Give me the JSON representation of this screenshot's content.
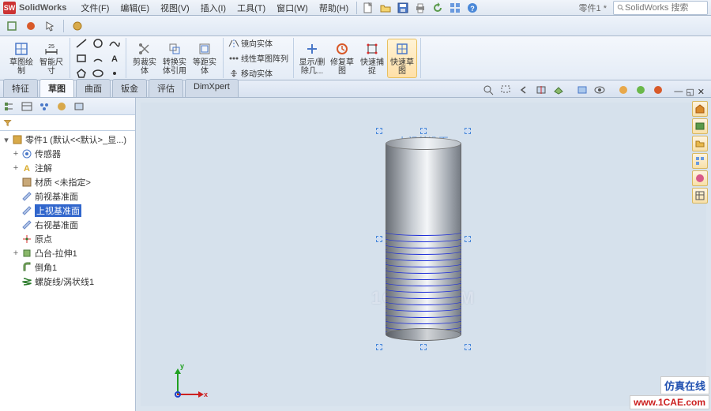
{
  "app": {
    "name": "SolidWorks",
    "doc_title": "零件1 *",
    "search_placeholder": "SolidWorks 搜索"
  },
  "menu": [
    "文件(F)",
    "编辑(E)",
    "视图(V)",
    "插入(I)",
    "工具(T)",
    "窗口(W)",
    "帮助(H)"
  ],
  "tabs": {
    "items": [
      "特征",
      "草图",
      "曲面",
      "钣金",
      "评估",
      "DimXpert"
    ],
    "active": 1
  },
  "ribbon": {
    "big": [
      {
        "label": "草图绘\n制"
      },
      {
        "label": "智能尺\n寸"
      }
    ],
    "mid": [
      {
        "label": "剪裁实\n体"
      },
      {
        "label": "转换实\n体引用"
      },
      {
        "label": "等距实\n体"
      }
    ],
    "text_rows": [
      "镜向实体",
      "线性草图阵列",
      "移动实体"
    ],
    "right": [
      {
        "label": "显示/删\n除几..."
      },
      {
        "label": "修复草\n图"
      },
      {
        "label": "快速捕\n捉"
      },
      {
        "label": "快速草\n图",
        "highlighted": true
      }
    ]
  },
  "tree": {
    "root": "零件1 (默认<<默认>_显...)",
    "items": [
      {
        "icon": "sensor",
        "label": "传感器",
        "indent": 1,
        "exp": "+"
      },
      {
        "icon": "annot",
        "label": "注解",
        "indent": 1,
        "exp": "+"
      },
      {
        "icon": "mat",
        "label": "材质 <未指定>",
        "indent": 1,
        "exp": ""
      },
      {
        "icon": "plane",
        "label": "前视基准面",
        "indent": 1,
        "exp": ""
      },
      {
        "icon": "plane",
        "label": "上视基准面",
        "indent": 1,
        "exp": "",
        "selected": true
      },
      {
        "icon": "plane",
        "label": "右视基准面",
        "indent": 1,
        "exp": ""
      },
      {
        "icon": "origin",
        "label": "原点",
        "indent": 1,
        "exp": ""
      },
      {
        "icon": "boss",
        "label": "凸台-拉伸1",
        "indent": 1,
        "exp": "+"
      },
      {
        "icon": "fillet",
        "label": "倒角1",
        "indent": 1,
        "exp": ""
      },
      {
        "icon": "helix",
        "label": "螺旋线/涡状线1",
        "indent": 1,
        "exp": ""
      }
    ]
  },
  "viewport": {
    "plane_label": "上视基准面",
    "watermark": "1CAE.COM",
    "threads": 18,
    "axes": {
      "x": "x",
      "y": "y",
      "z": ""
    }
  },
  "colors": {
    "thread": "#2030d8",
    "x": "#cc2020",
    "y": "#20a020",
    "z": "#2040cc",
    "sel": "#3166cc"
  },
  "footer": {
    "line1": "仿真在线",
    "line2": "www.1CAE.com"
  }
}
